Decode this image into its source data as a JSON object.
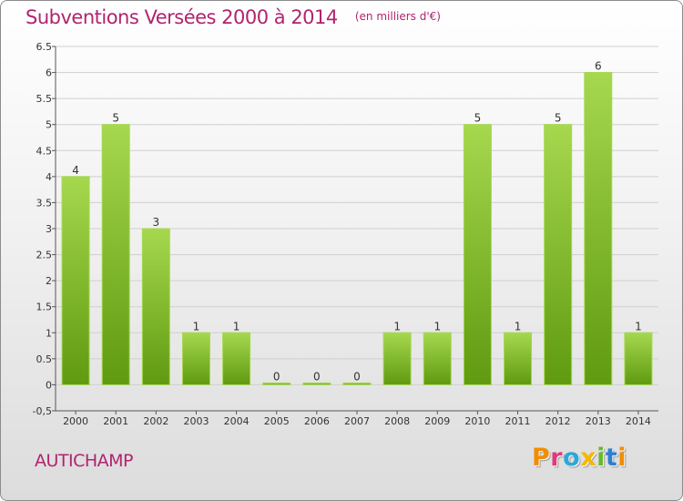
{
  "header": {
    "title": "Subventions Versées 2000 à 2014",
    "subtitle": "(en milliers d'€)"
  },
  "footer": {
    "place": "AUTICHAMP",
    "brand": "Proxiti",
    "brand_colors": [
      "#f28c00",
      "#e03a7a",
      "#2aa8d8",
      "#f5b800",
      "#6ab82e",
      "#2f7fd0",
      "#f28c00"
    ]
  },
  "colors": {
    "title": "#b0246f",
    "bar_light": "#a6d84e",
    "bar_dark": "#5f9a10",
    "grid": "#cfcfcf"
  },
  "chart_data": {
    "type": "bar",
    "title": "Subventions Versées 2000 à 2014",
    "subtitle": "(en milliers d'€)",
    "categories": [
      "2000",
      "2001",
      "2002",
      "2003",
      "2004",
      "2005",
      "2006",
      "2007",
      "2008",
      "2009",
      "2010",
      "2011",
      "2012",
      "2013",
      "2014"
    ],
    "values": [
      4,
      5,
      3,
      1,
      1,
      0,
      0,
      0,
      1,
      1,
      5,
      1,
      5,
      6,
      1
    ],
    "data_labels": [
      "4",
      "5",
      "3",
      "1",
      "1",
      "0",
      "0",
      "0",
      "1",
      "1",
      "5",
      "1",
      "5",
      "6",
      "1"
    ],
    "ylim": [
      -0.5,
      6.5
    ],
    "yticks": [
      "-0,5",
      "0",
      "0.5",
      "1",
      "1.5",
      "2",
      "2.5",
      "3",
      "3.5",
      "4",
      "4.5",
      "5",
      "5.5",
      "6",
      "6.5"
    ],
    "grid": true,
    "legend": "none"
  }
}
